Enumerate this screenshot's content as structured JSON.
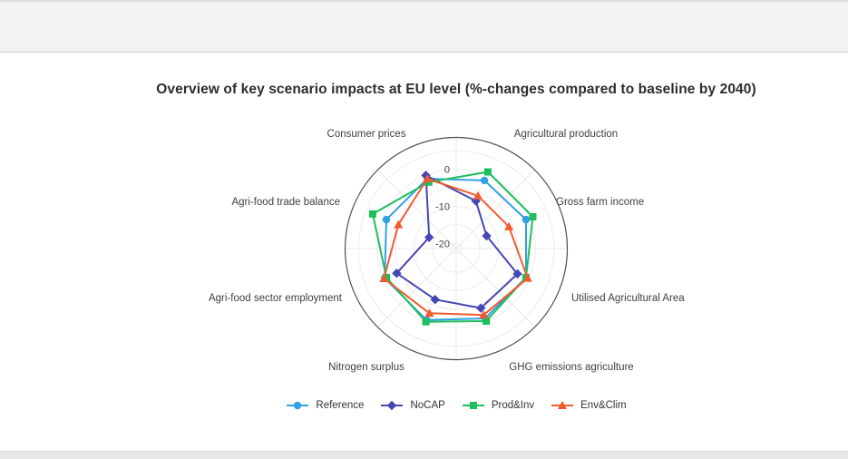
{
  "page": {
    "title": "Overview of key scenario impacts at EU level (%-changes compared to baseline by 2040)"
  },
  "chart_data": {
    "type": "radar",
    "title": "Overview of key scenario impacts at EU level (%-changes compared to baseline by 2040)",
    "categories": [
      "Agricultural production",
      "Gross farm income",
      "Utilised Agricultural Area",
      "GHG emissions agriculture",
      "Nitrogen surplus",
      "Agri-food sector employment",
      "Agri-food trade balance",
      "Consumer prices"
    ],
    "series": [
      {
        "name": "Reference",
        "marker": "circle",
        "color": "#33A0E6",
        "values": [
          -1.5,
          -1,
          -1,
          -1,
          -0.5,
          -0.5,
          -1,
          -1
        ]
      },
      {
        "name": "NoCAP",
        "marker": "diamond",
        "color": "#4446B3",
        "values": [
          -7.5,
          -12.5,
          -3.5,
          -4,
          -6.5,
          -4,
          -13.5,
          0
        ]
      },
      {
        "name": "Prod&Inv",
        "marker": "square",
        "color": "#1EBE5C",
        "values": [
          1,
          1,
          -1,
          -0.2,
          0,
          -1,
          3,
          -2
        ]
      },
      {
        "name": "Env&Clim",
        "marker": "triangle",
        "color": "#F15B2E",
        "values": [
          -6,
          -6,
          -0.5,
          -2,
          -2.5,
          -0.3,
          -4.5,
          -1
        ]
      }
    ],
    "radial_axis": {
      "tick_labels": [
        "0",
        "-10",
        "-20"
      ],
      "tick_values": [
        0,
        -10,
        -20
      ],
      "range": [
        -21.4,
        8.6
      ],
      "grid_interval": 5
    },
    "legend_position": "bottom",
    "grid": true,
    "colors": {
      "outer_circle": "#4d4d4d",
      "grid_line": "#ececec",
      "spoke_line": "#e9e9e9",
      "tick_text": "#444444",
      "axis_label_text": "#3f3f3f"
    }
  }
}
